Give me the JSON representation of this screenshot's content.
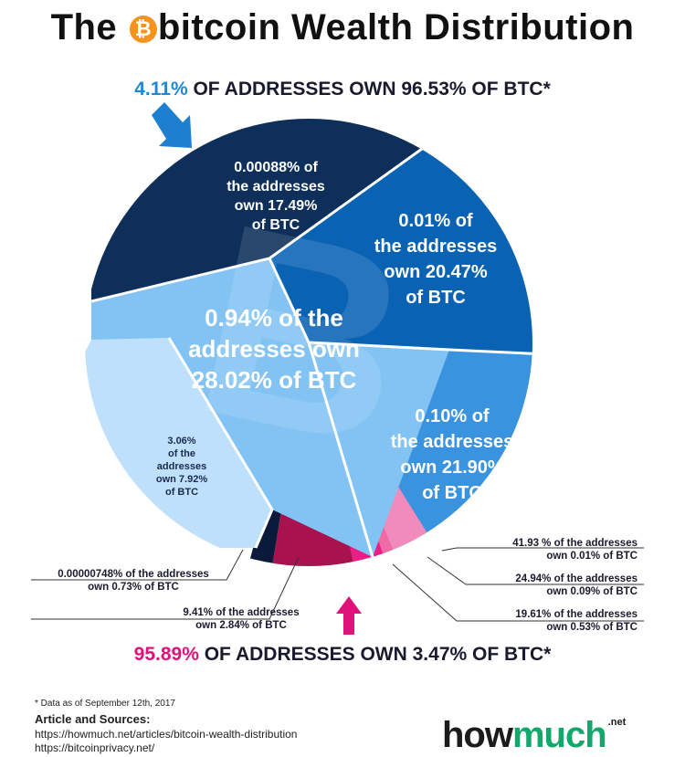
{
  "title": {
    "before": "The",
    "coin_glyph": "₿",
    "after": "bitcoin Wealth Distribution"
  },
  "headline_top": {
    "highlight": "4.11%",
    "rest": " OF ADDRESSES OWN 96.53% OF BTC*"
  },
  "headline_bottom": {
    "highlight": "95.89%",
    "rest": " OF ADDRESSES OWN 3.47% OF BTC*"
  },
  "chart_data": {
    "type": "pie",
    "title": "The bitcoin Wealth Distribution",
    "slices": [
      {
        "addresses_pct": "0.00088%",
        "btc_pct": 17.49,
        "color": "#0d2f5a",
        "label_lines": [
          "0.00088% of",
          "the addresses",
          "own 17.49%",
          "of BTC"
        ]
      },
      {
        "addresses_pct": "0.01%",
        "btc_pct": 20.47,
        "color": "#0a62b3",
        "label_lines": [
          "0.01% of",
          "the addresses",
          "own 20.47%",
          "of BTC"
        ]
      },
      {
        "addresses_pct": "0.10%",
        "btc_pct": 21.9,
        "color": "#3a93de",
        "label_lines": [
          "0.10% of",
          "the addresses",
          "own 21.90%",
          "of BTC"
        ]
      },
      {
        "addresses_pct": "41.93 %",
        "btc_pct": 0.01,
        "color": "#f08bbb",
        "label_lines": [
          "41.93 % of the addresses",
          "own 0.01% of BTC"
        ]
      },
      {
        "addresses_pct": "24.94%",
        "btc_pct": 0.09,
        "color": "#f06aa8",
        "label_lines": [
          "24.94% of the addresses",
          "own 0.09% of BTC"
        ]
      },
      {
        "addresses_pct": "19.61%",
        "btc_pct": 0.53,
        "color": "#ee1c84",
        "label_lines": [
          "19.61% of the addresses",
          "own 0.53% of BTC"
        ]
      },
      {
        "addresses_pct": "9.41%",
        "btc_pct": 2.84,
        "color": "#a8124f",
        "label_lines": [
          "9.41% of the addresses",
          "own 2.84% of BTC"
        ]
      },
      {
        "addresses_pct": "0.00000748%",
        "btc_pct": 0.73,
        "color": "#0b1a3a",
        "label_lines": [
          "0.00000748% of the addresses",
          "own 0.73% of BTC"
        ]
      },
      {
        "addresses_pct": "3.06%",
        "btc_pct": 7.92,
        "color": "#bfe0fa",
        "label_lines": [
          "3.06%",
          "of the",
          "addresses",
          "own 7.92%",
          "of BTC"
        ]
      },
      {
        "addresses_pct": "0.94%",
        "btc_pct": 28.02,
        "color": "#82c3f3",
        "label_lines": [
          "0.94% of the",
          "addresses own",
          "28.02% of BTC"
        ]
      }
    ]
  },
  "footer": {
    "note": "* Data as of September 12th, 2017",
    "heading": "Article and Sources:",
    "source1": "https://howmuch.net/articles/bitcoin-wealth-distribution",
    "source2": "https://bitcoinprivacy.net/"
  },
  "logo": {
    "part1": "how",
    "part2": "much",
    "tld": ".net"
  },
  "colors": {
    "accent_blue": "#1e88d6",
    "accent_pink": "#e0127a"
  }
}
